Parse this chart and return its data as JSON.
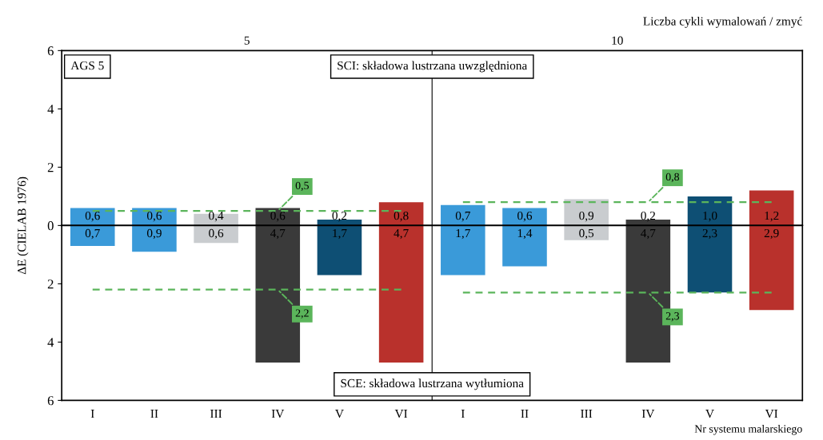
{
  "chart_data": [
    {
      "type": "bar",
      "categories": [
        null,
        null,
        null,
        null,
        null,
        null,
        null,
        null,
        null,
        null,
        null,
        null
      ],
      "tick_labels": "y",
      "ylabel": "ΔE (CIELAB 1976)",
      "ylim": [
        0,
        6
      ],
      "yticks": [
        0,
        2,
        4,
        6
      ],
      "series": [
        {
          "colors": [
            "#3a9ad9",
            "#3a9ad9",
            "#c9cccf",
            "#3a3a3a",
            "#0e4f74",
            "#b9312c",
            "#3a9ad9",
            "#3a9ad9",
            "#c9cccf",
            "#3a3a3a",
            "#0e4f74",
            "#b9312c"
          ],
          "values": [
            0.6,
            0.6,
            0.4,
            0.6,
            0.2,
            0.8,
            0.7,
            0.6,
            0.9,
            0.2,
            1.0,
            1.2
          ],
          "value_labels": [
            "0,6",
            "0,6",
            "0,4",
            "0,6",
            "0,2",
            "0,8",
            "0,7",
            "0,6",
            "0,9",
            "0,2",
            "1,0",
            "1,2"
          ]
        },
        {
          "type": "line",
          "color": "#5bb55b",
          "line_style": "dashed",
          "values": [
            0.5,
            0.5,
            0.5,
            0.5,
            0.5,
            0.5,
            null,
            null,
            null,
            null,
            null,
            null
          ],
          "value_labels": [
            null,
            null,
            null,
            "0,5",
            null,
            null,
            null,
            null,
            null,
            null,
            null,
            null
          ]
        },
        {
          "type": "line",
          "color": "#5bb55b",
          "line_style": "dashed",
          "values": [
            null,
            null,
            null,
            null,
            null,
            null,
            0.8,
            0.8,
            0.8,
            0.8,
            0.8,
            0.8
          ],
          "value_labels": [
            null,
            null,
            null,
            null,
            null,
            null,
            null,
            null,
            null,
            "0,8",
            null,
            null
          ]
        }
      ],
      "annotations": [
        "Liczba cykli wymalowań / zmyć",
        "5",
        "10",
        "AGS 5",
        "SCI: składowa lustrzana uwzględniona"
      ],
      "grid": false
    },
    {
      "type": "bar",
      "categories": [
        "I",
        "II",
        "III",
        "IV",
        "V",
        "VI",
        "I",
        "II",
        "III",
        "IV",
        "V",
        "VI"
      ],
      "xlabel": "Nr systemu malarskiego",
      "ylim": [
        6,
        0
      ],
      "yticks": [
        2,
        4,
        6
      ],
      "series": [
        {
          "colors": [
            "#3a9ad9",
            "#3a9ad9",
            "#c9cccf",
            "#3a3a3a",
            "#0e4f74",
            "#b9312c",
            "#3a9ad9",
            "#3a9ad9",
            "#c9cccf",
            "#3a3a3a",
            "#0e4f74",
            "#b9312c"
          ],
          "values": [
            0.7,
            0.9,
            0.6,
            4.7,
            1.7,
            4.7,
            1.7,
            1.4,
            0.5,
            4.7,
            2.3,
            2.9
          ],
          "value_labels": [
            "0,7",
            "0,9",
            "0,6",
            "4,7",
            "1,7",
            "4,7",
            "1,7",
            "1,4",
            "0,5",
            "4,7",
            "2,3",
            "2,9"
          ]
        },
        {
          "type": "line",
          "color": "#5bb55b",
          "line_style": "dashed",
          "values": [
            2.2,
            2.2,
            2.2,
            2.2,
            2.2,
            2.2,
            null,
            null,
            null,
            null,
            null,
            null
          ],
          "value_labels": [
            null,
            null,
            null,
            "2,2",
            null,
            null,
            null,
            null,
            null,
            null,
            null,
            null
          ]
        },
        {
          "type": "line",
          "color": "#5bb55b",
          "line_style": "dashed",
          "values": [
            null,
            null,
            null,
            null,
            null,
            null,
            2.3,
            2.3,
            2.3,
            2.3,
            2.3,
            2.3
          ],
          "value_labels": [
            null,
            null,
            null,
            null,
            null,
            null,
            null,
            null,
            null,
            "2,3",
            null,
            null
          ]
        }
      ],
      "annotations": [
        "SCE: składowa lustrzana wytłumiona"
      ],
      "grid": false
    }
  ]
}
